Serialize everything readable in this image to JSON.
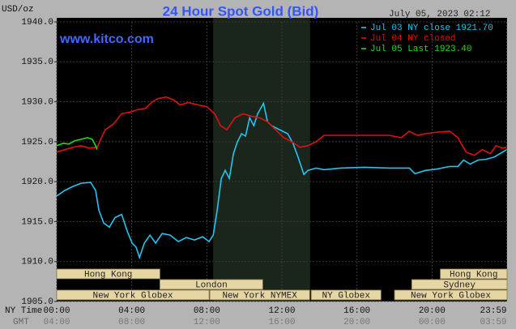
{
  "chart_data": {
    "type": "line",
    "title": "24 Hour Spot Gold (Bid)",
    "site": "www.kitco.com",
    "timestamp": "July 05, 2023 02:12",
    "y_label": "USD/oz",
    "x_label": "NY Time",
    "x2_label": "GMT",
    "xlim": [
      0,
      24
    ],
    "xticks": [
      {
        "value": 0,
        "label": "00:00"
      },
      {
        "value": 4,
        "label": "04:00"
      },
      {
        "value": 8,
        "label": "08:00"
      },
      {
        "value": 12,
        "label": "12:00"
      },
      {
        "value": 16,
        "label": "16:00"
      },
      {
        "value": 20,
        "label": "20:00"
      },
      {
        "value": 23.98,
        "label": "23:59"
      }
    ],
    "x2_tick_labels": [
      "04:00",
      "08:00",
      "12:00",
      "16:00",
      "20:00",
      "00:00",
      "03:59"
    ],
    "ylim": [
      1905,
      1940
    ],
    "yticks": [
      {
        "value": 1905,
        "label": "1905.0"
      },
      {
        "value": 1910,
        "label": "1910.0"
      },
      {
        "value": 1915,
        "label": "1915.0"
      },
      {
        "value": 1920,
        "label": "1920.0"
      },
      {
        "value": 1925,
        "label": "1925.0"
      },
      {
        "value": 1930,
        "label": "1930.0"
      },
      {
        "value": 1935,
        "label": "1935.0"
      },
      {
        "value": 1940,
        "label": "1940.0"
      }
    ],
    "grid": true,
    "legend": "top-right",
    "highlight": {
      "start": 8.34,
      "end": 13.5,
      "color": "#1a251c"
    },
    "sessions": [
      [
        {
          "label": "Hong Kong",
          "start": 0,
          "end": 5.5
        },
        {
          "label": "Hong Kong",
          "start": 20.44,
          "end": 24
        }
      ],
      [
        {
          "label": "London",
          "start": 5.5,
          "end": 10.98
        },
        {
          "label": "Sydney",
          "start": 18.92,
          "end": 24
        }
      ],
      [
        {
          "label": "New York Globex",
          "start": 0,
          "end": 8.12
        },
        {
          "label": "New York NYMEX",
          "start": 8.16,
          "end": 13.48
        },
        {
          "label": "NY Globex",
          "start": 13.56,
          "end": 17.28
        },
        {
          "label": "New York Globex",
          "start": 18.0,
          "end": 24
        }
      ]
    ],
    "series": [
      {
        "name": "Jul 03 NY close 1921.70",
        "color": "#22c6f2",
        "x": [
          0,
          0.43,
          0.86,
          1.3,
          1.81,
          2.07,
          2.25,
          2.51,
          2.81,
          3.11,
          3.46,
          3.76,
          4.02,
          4.23,
          4.41,
          4.67,
          4.97,
          5.27,
          5.62,
          6.05,
          6.48,
          6.91,
          7.34,
          7.78,
          8.12,
          8.34,
          8.55,
          8.77,
          8.98,
          9.2,
          9.42,
          9.63,
          9.85,
          10.06,
          10.28,
          10.5,
          10.71,
          11.02,
          11.23,
          11.45,
          11.88,
          12.31,
          12.61,
          12.87,
          13.17,
          13.39,
          13.82,
          14.25,
          15.12,
          16.41,
          17.71,
          18.79,
          19.09,
          19.65,
          20.3,
          20.95,
          21.38,
          21.68,
          22.03,
          22.46,
          22.89,
          23.33,
          23.76,
          23.98
        ],
        "values": [
          1918.2,
          1918.9,
          1919.4,
          1919.8,
          1919.9,
          1918.9,
          1916.4,
          1914.8,
          1914.3,
          1915.5,
          1915.9,
          1913.8,
          1912.3,
          1911.8,
          1910.5,
          1912.3,
          1913.3,
          1912.3,
          1913.5,
          1913.3,
          1912.5,
          1913.0,
          1912.7,
          1913.1,
          1912.5,
          1913.3,
          1916.4,
          1920.4,
          1921.4,
          1920.4,
          1923.5,
          1925.0,
          1926.0,
          1925.7,
          1928.0,
          1927.0,
          1928.5,
          1929.8,
          1927.5,
          1927.0,
          1926.5,
          1926.0,
          1924.7,
          1923.0,
          1920.9,
          1921.4,
          1921.7,
          1921.5,
          1921.7,
          1921.8,
          1921.7,
          1921.7,
          1921.0,
          1921.4,
          1921.6,
          1921.9,
          1921.9,
          1922.7,
          1922.2,
          1922.7,
          1922.8,
          1923.1,
          1923.7,
          1924.0
        ]
      },
      {
        "name": "Jul 04 NY closed",
        "color": "#e01010",
        "x": [
          0,
          0.43,
          0.86,
          1.3,
          1.73,
          2.16,
          2.38,
          2.59,
          3.02,
          3.46,
          3.89,
          4.32,
          4.75,
          5.1,
          5.4,
          5.83,
          6.26,
          6.57,
          7.0,
          7.56,
          7.99,
          8.42,
          8.73,
          9.07,
          9.5,
          9.94,
          10.37,
          10.8,
          11.23,
          11.66,
          12.1,
          12.53,
          12.96,
          13.39,
          13.82,
          14.25,
          15.12,
          16.41,
          17.71,
          18.36,
          18.79,
          19.22,
          19.65,
          20.3,
          20.95,
          21.38,
          21.81,
          22.25,
          22.68,
          23.11,
          23.41,
          23.76,
          23.98
        ],
        "values": [
          1923.7,
          1924.0,
          1924.3,
          1924.5,
          1924.2,
          1924.3,
          1925.5,
          1926.5,
          1927.2,
          1928.5,
          1928.7,
          1929.0,
          1929.2,
          1930.0,
          1930.4,
          1930.6,
          1930.2,
          1929.6,
          1929.9,
          1929.6,
          1929.4,
          1928.5,
          1927.0,
          1926.5,
          1928.0,
          1928.5,
          1928.2,
          1928.0,
          1927.5,
          1926.5,
          1925.5,
          1925.0,
          1924.3,
          1924.5,
          1925.0,
          1925.8,
          1925.8,
          1925.8,
          1925.8,
          1925.5,
          1926.3,
          1925.8,
          1926.0,
          1926.2,
          1926.3,
          1925.5,
          1923.7,
          1923.3,
          1924.0,
          1923.5,
          1924.5,
          1924.2,
          1924.3
        ]
      },
      {
        "name": "Jul 05 Last 1923.40",
        "color": "#22dd22",
        "x": [
          0,
          0.35,
          0.65,
          0.95,
          1.3,
          1.64,
          1.9,
          2.07,
          2.16
        ],
        "values": [
          1924.5,
          1924.8,
          1924.7,
          1925.1,
          1925.3,
          1925.5,
          1925.3,
          1924.5,
          1924.0
        ]
      }
    ]
  }
}
